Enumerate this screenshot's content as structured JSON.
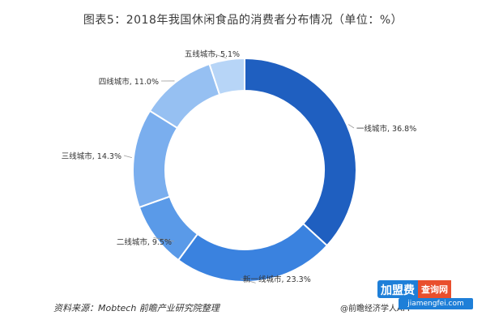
{
  "title": "图表5：2018年我国休闲食品的消费者分布情况（单位：%）",
  "source": "资料来源：Mobtech  前瞻产业研究院整理",
  "watermark": "@前瞻经济学人APP",
  "brand": {
    "part1": "加盟费",
    "part2": "查询网",
    "url": "jiamengfei.com"
  },
  "chart_data": {
    "type": "pie",
    "variant": "donut",
    "title": "图表5：2018年我国休闲食品的消费者分布情况（单位：%）",
    "unit": "%",
    "slices": [
      {
        "label": "一线城市",
        "value": 36.8,
        "display": "一线城市, 36.8%",
        "color": "#1f5fc0"
      },
      {
        "label": "新一线城市",
        "value": 23.3,
        "display": "新一线城市, 23.3%",
        "color": "#3a82df"
      },
      {
        "label": "二线城市",
        "value": 9.5,
        "display": "二线城市, 9.5%",
        "color": "#5a9ae8"
      },
      {
        "label": "三线城市",
        "value": 14.3,
        "display": "三线城市, 14.3%",
        "color": "#7aaeee"
      },
      {
        "label": "四线城市",
        "value": 11.0,
        "display": "四线城市, 11.0%",
        "color": "#96c0f2"
      },
      {
        "label": "五线城市",
        "value": 5.1,
        "display": "五线城市, 5.1%",
        "color": "#b7d5f7"
      }
    ]
  }
}
